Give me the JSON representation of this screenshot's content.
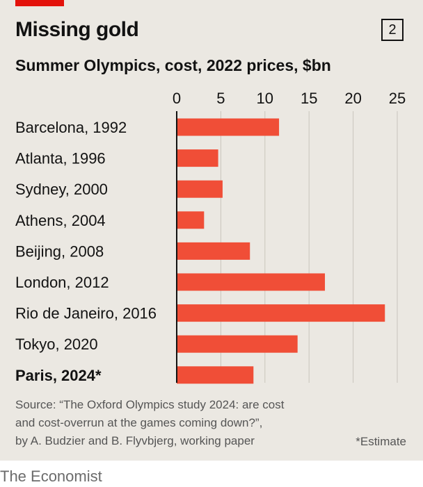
{
  "header": {
    "title": "Missing gold",
    "chart_number": "2",
    "subtitle": "Summer Olympics, cost, 2022 prices, $bn"
  },
  "chart_data": {
    "type": "bar",
    "orientation": "horizontal",
    "title": "Missing gold",
    "subtitle": "Summer Olympics, cost, 2022 prices, $bn",
    "xlabel": "",
    "ylabel": "",
    "xlim": [
      0,
      25
    ],
    "xticks": [
      0,
      5,
      10,
      15,
      20,
      25
    ],
    "grid": true,
    "categories": [
      "Barcelona, 1992",
      "Atlanta, 1996",
      "Sydney, 2000",
      "Athens, 2004",
      "Beijing, 2008",
      "London, 2012",
      "Rio de Janeiro, 2016",
      "Tokyo, 2020",
      "Paris, 2024*"
    ],
    "values": [
      11.6,
      4.7,
      5.2,
      3.1,
      8.3,
      16.8,
      23.6,
      13.7,
      8.7
    ],
    "highlight_category": "Paris, 2024*",
    "bar_color": "#f04e37"
  },
  "footer": {
    "source_lines": [
      "Source: “The Oxford Olympics study 2024: are cost",
      "and cost-overrun at the games coming down?”,",
      "by A. Budzier and B. Flyvbjerg, working paper"
    ],
    "note": "*Estimate",
    "brand": "The Economist"
  },
  "colors": {
    "background": "#ebe8e2",
    "accent_red": "#e3120b",
    "bar": "#f04e37",
    "gridline": "#c9c5bd",
    "text": "#121212"
  }
}
